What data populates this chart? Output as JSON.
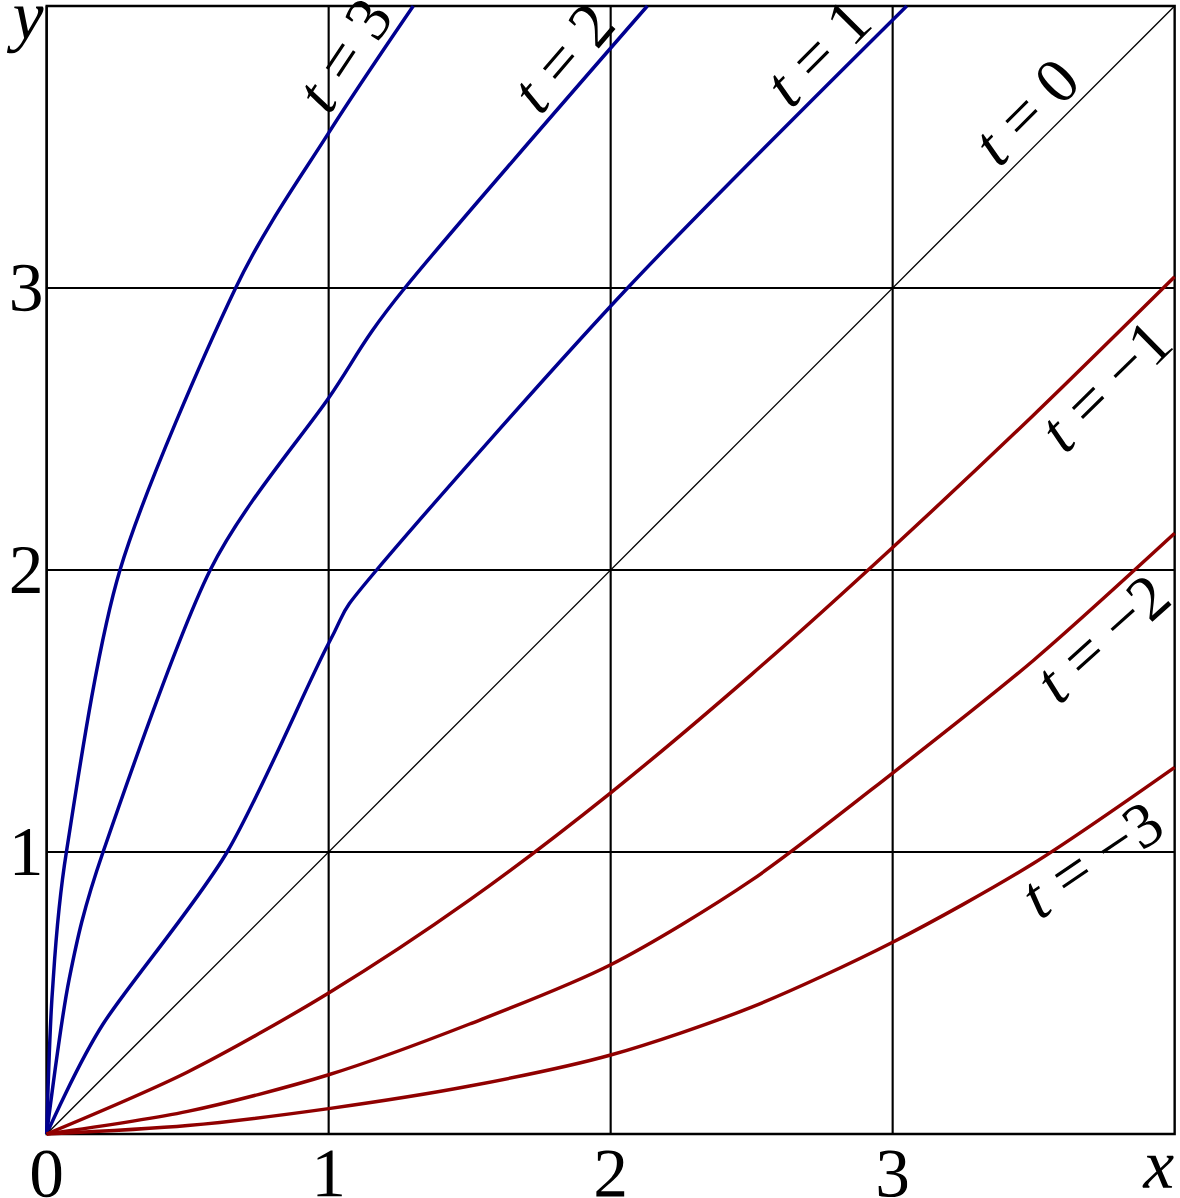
{
  "chart_data": {
    "type": "line",
    "xlabel": "x",
    "ylabel": "y",
    "xlim": [
      0,
      4
    ],
    "ylim": [
      0,
      4
    ],
    "xticks": [
      0,
      1,
      2,
      3
    ],
    "yticks": [
      1,
      2,
      3
    ],
    "grid": true,
    "marker": "none",
    "line_style": "solid",
    "series": [
      {
        "name": "*t* = 3",
        "color": "#000090",
        "x": [
          0,
          0.02,
          0.07,
          0.26,
          0.67,
          1,
          1.3
        ],
        "values": [
          0,
          0.5,
          1,
          2,
          3,
          3.55,
          4
        ]
      },
      {
        "name": "*t* = 2",
        "color": "#000090",
        "x": [
          0,
          0.08,
          0.2,
          0.58,
          1,
          1.27,
          2.13
        ],
        "values": [
          0,
          0.55,
          1,
          2,
          2.61,
          3,
          4
        ]
      },
      {
        "name": "*t* = 1",
        "color": "#000090",
        "x": [
          0,
          0.2,
          0.64,
          1,
          1.17,
          2.06,
          3.05
        ],
        "values": [
          0,
          0.39,
          1,
          1.74,
          2,
          3,
          4
        ]
      },
      {
        "name": "*t* = 0",
        "color": "#000000",
        "x": [
          0,
          4
        ],
        "values": [
          0,
          4
        ]
      },
      {
        "name": "*t* = −1",
        "color": "#900000",
        "x": [
          0,
          0.5,
          1,
          1.5,
          2,
          2.5,
          3,
          3.5,
          4
        ],
        "values": [
          0,
          0.22,
          0.5,
          0.83,
          1.21,
          1.63,
          2.08,
          2.55,
          3.04
        ]
      },
      {
        "name": "*t* = −2",
        "color": "#900000",
        "x": [
          0,
          0.5,
          1,
          1.5,
          2,
          2.5,
          3,
          3.5,
          4
        ],
        "values": [
          0,
          0.08,
          0.21,
          0.39,
          0.6,
          0.9,
          1.28,
          1.68,
          2.13
        ]
      },
      {
        "name": "*t* = −3",
        "color": "#900000",
        "x": [
          0,
          0.5,
          1,
          1.5,
          2,
          2.5,
          3,
          3.5,
          4
        ],
        "values": [
          0,
          0.03,
          0.09,
          0.17,
          0.28,
          0.45,
          0.68,
          0.96,
          1.3
        ]
      }
    ]
  }
}
